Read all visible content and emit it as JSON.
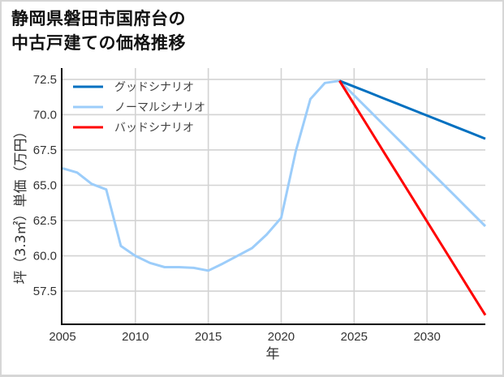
{
  "header": {
    "title_line1": "静岡県磐田市国府台の",
    "title_line2": "中古戸建ての価格推移"
  },
  "chart_data": {
    "type": "line",
    "title": "静岡県磐田市国府台の中古戸建ての価格推移",
    "xlabel": "年",
    "ylabel": "坪（3.3㎡）単価（万円）",
    "xlim": [
      2005,
      2034
    ],
    "ylim": [
      55.15,
      73.3
    ],
    "xticks": [
      2005,
      2010,
      2015,
      2020,
      2025,
      2030
    ],
    "xtick_labels": [
      "2005",
      "2010",
      "2015",
      "2020",
      "2025",
      "2030"
    ],
    "yticks": [
      57.5,
      60.0,
      62.5,
      65.0,
      67.5,
      70.0,
      72.5
    ],
    "ytick_labels": [
      "57.5",
      "60.0",
      "62.5",
      "65.0",
      "67.5",
      "70.0",
      "72.5"
    ],
    "grid": true,
    "legend_position": "upper left",
    "draw_order": [
      1,
      0,
      2
    ],
    "series": [
      {
        "name": "グッドシナリオ",
        "color": "#0070C0",
        "x": [
          2024,
          2025,
          2026,
          2027,
          2028,
          2029,
          2030,
          2031,
          2032,
          2033,
          2034
        ],
        "values": [
          72.4,
          71.99,
          71.58,
          71.17,
          70.76,
          70.35,
          69.94,
          69.53,
          69.12,
          68.71,
          68.3
        ]
      },
      {
        "name": "ノーマルシナリオ",
        "color": "#9CCDFA",
        "x": [
          2005,
          2006,
          2007,
          2008,
          2009,
          2010,
          2011,
          2012,
          2013,
          2014,
          2015,
          2016,
          2017,
          2018,
          2019,
          2020,
          2021,
          2022,
          2023,
          2024,
          2025,
          2026,
          2027,
          2028,
          2029,
          2030,
          2031,
          2032,
          2033,
          2034
        ],
        "values": [
          66.2,
          65.9,
          65.1,
          64.7,
          60.7,
          60.0,
          59.5,
          59.2,
          59.2,
          59.15,
          58.95,
          59.45,
          60.0,
          60.55,
          61.5,
          62.7,
          67.4,
          71.1,
          72.25,
          72.4,
          71.37,
          70.34,
          69.31,
          68.28,
          67.25,
          66.22,
          65.19,
          64.16,
          63.13,
          62.1
        ]
      },
      {
        "name": "バッドシナリオ",
        "color": "#FF0000",
        "x": [
          2024,
          2025,
          2026,
          2027,
          2028,
          2029,
          2030,
          2031,
          2032,
          2033,
          2034
        ],
        "values": [
          72.4,
          70.74,
          69.08,
          67.42,
          65.76,
          64.1,
          62.44,
          60.78,
          59.12,
          57.46,
          55.8
        ]
      }
    ]
  },
  "colors": {
    "grid": "#d3d3d3",
    "axis": "#000000",
    "frame": "#d6d6d6"
  }
}
